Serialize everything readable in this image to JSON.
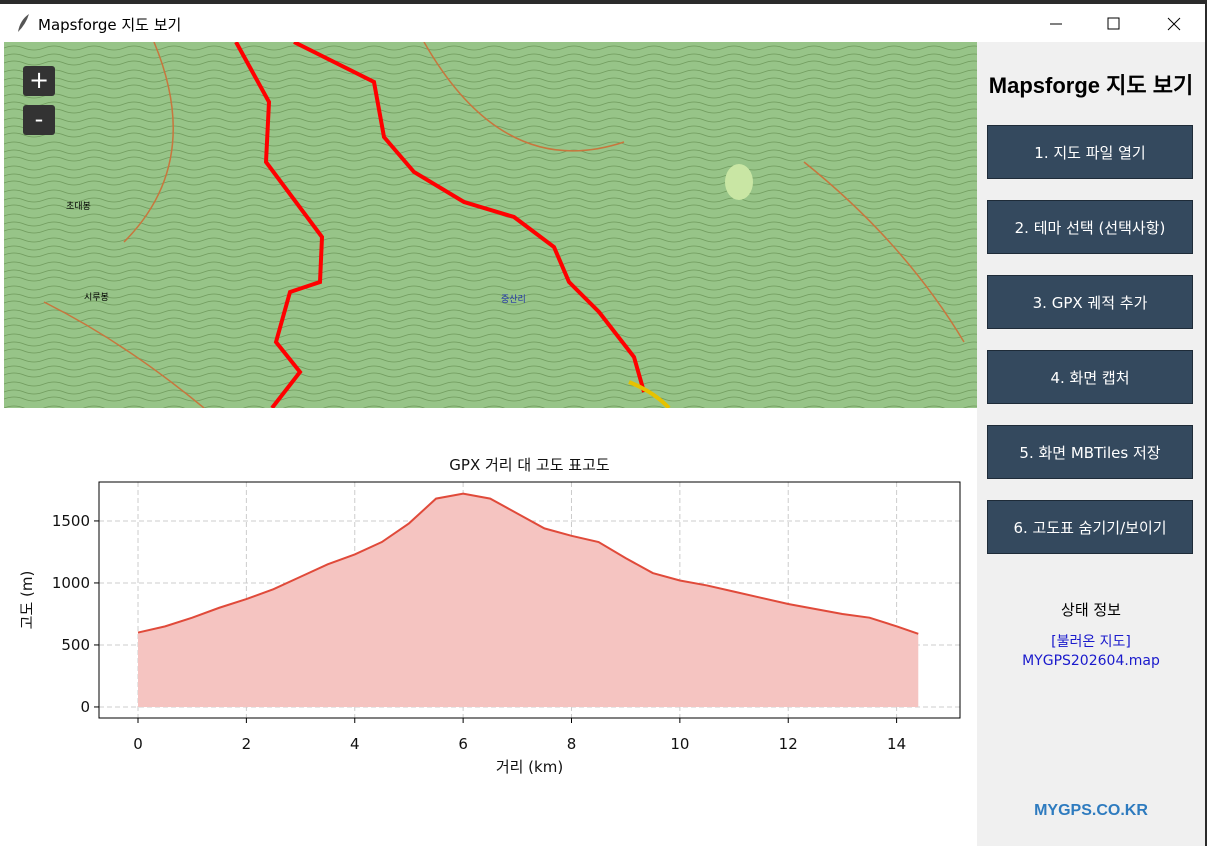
{
  "window": {
    "title": "Mapsforge 지도 보기"
  },
  "map": {
    "zoom_in": "+",
    "zoom_out": "-",
    "labels": [
      "초대봉",
      "시루봉",
      "중산리"
    ]
  },
  "sidebar": {
    "title": "Mapsforge 지도 보기",
    "buttons": [
      "1. 지도 파일 열기",
      "2. 테마 선택 (선택사항)",
      "3. GPX 궤적 추가",
      "4. 화면 캡처",
      "5. 화면 MBTiles 저장",
      "6. 고도표 숨기기/보이기"
    ],
    "status_title": "상태 정보",
    "status_label": "[불러온 지도]",
    "status_file": "MYGPS202604.map",
    "footer": "MYGPS.CO.KR"
  },
  "chart_data": {
    "type": "area",
    "title": "GPX 거리 대 고도 표고도",
    "xlabel": "거리 (km)",
    "ylabel": "고도 (m)",
    "x": [
      0,
      0.5,
      1,
      1.5,
      2,
      2.5,
      3,
      3.5,
      4,
      4.5,
      5,
      5.5,
      6,
      6.5,
      7,
      7.5,
      8,
      8.5,
      9,
      9.5,
      10,
      10.5,
      11,
      11.5,
      12,
      12.5,
      13,
      13.5,
      14,
      14.4
    ],
    "values": [
      600,
      650,
      720,
      800,
      870,
      950,
      1050,
      1150,
      1230,
      1330,
      1480,
      1680,
      1720,
      1680,
      1560,
      1440,
      1380,
      1330,
      1200,
      1080,
      1020,
      980,
      930,
      880,
      830,
      790,
      750,
      720,
      650,
      590
    ],
    "color": "#e04a3a",
    "fill_color": "#f5c4c1",
    "xlim": [
      -0.72,
      15.17
    ],
    "ylim": [
      -89,
      1814
    ],
    "xticks": [
      0,
      2,
      4,
      6,
      8,
      10,
      12,
      14
    ],
    "yticks": [
      0,
      500,
      1000,
      1500
    ],
    "grid": true
  }
}
